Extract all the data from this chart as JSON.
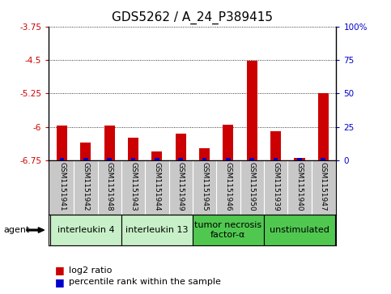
{
  "title": "GDS5262 / A_24_P389415",
  "samples": [
    "GSM1151941",
    "GSM1151942",
    "GSM1151948",
    "GSM1151943",
    "GSM1151944",
    "GSM1151949",
    "GSM1151945",
    "GSM1151946",
    "GSM1151950",
    "GSM1151939",
    "GSM1151940",
    "GSM1151947"
  ],
  "log2_ratio": [
    -5.98,
    -6.35,
    -5.98,
    -6.25,
    -6.55,
    -6.15,
    -6.48,
    -5.95,
    -4.52,
    -6.1,
    -6.7,
    -5.25
  ],
  "percentile": [
    2,
    2,
    2,
    1,
    1,
    2,
    2,
    2,
    2,
    2,
    3,
    2
  ],
  "agents": [
    {
      "label": "interleukin 4",
      "samples": [
        0,
        1,
        2
      ],
      "color": "#c8f0c8"
    },
    {
      "label": "interleukin 13",
      "samples": [
        3,
        4,
        5
      ],
      "color": "#c8f0c8"
    },
    {
      "label": "tumor necrosis\nfactor-α",
      "samples": [
        6,
        7,
        8
      ],
      "color": "#50c850"
    },
    {
      "label": "unstimulated",
      "samples": [
        9,
        10,
        11
      ],
      "color": "#50c850"
    }
  ],
  "ylim": [
    -6.75,
    -3.75
  ],
  "yticks": [
    -6.75,
    -6.0,
    -5.25,
    -4.5,
    -3.75
  ],
  "ytick_labels": [
    "-6.75",
    "-6",
    "-5.25",
    "-4.5",
    "-3.75"
  ],
  "right_yticks": [
    0,
    25,
    50,
    75,
    100
  ],
  "right_ytick_labels": [
    "0",
    "25",
    "50",
    "75",
    "100%"
  ],
  "bar_color": "#cc0000",
  "percentile_color": "#0000cc",
  "bg_color": "#c8c8c8",
  "plot_bg": "#ffffff",
  "grid_color": "#000000",
  "title_fontsize": 11,
  "tick_fontsize": 7.5,
  "label_fontsize": 6.5,
  "legend_fontsize": 8,
  "agent_fontsize": 8
}
